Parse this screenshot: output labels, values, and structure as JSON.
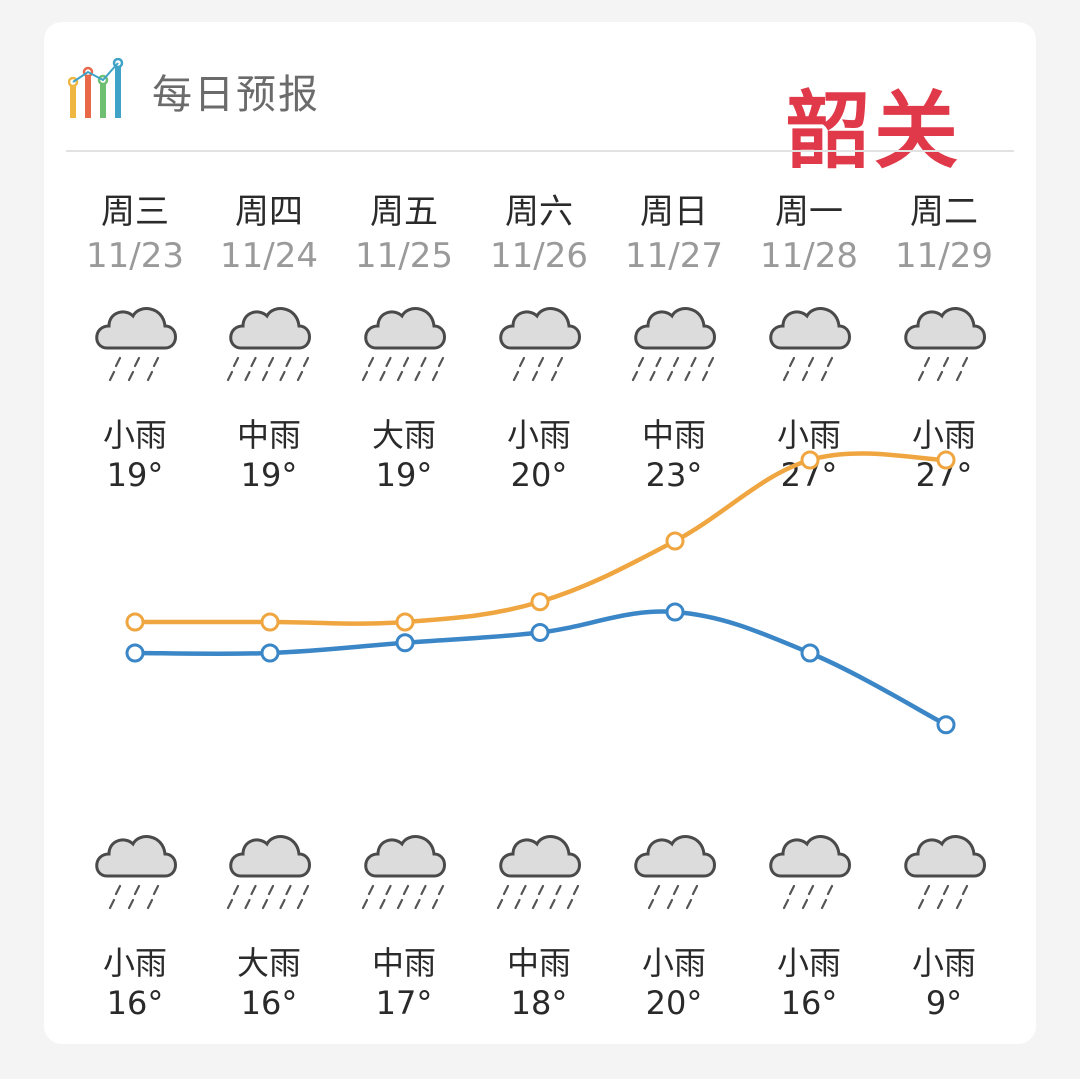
{
  "header": {
    "title": "每日预报",
    "city": "韶关",
    "icon": "bar-chart-icon"
  },
  "days": [
    {
      "weekday": "周三",
      "date": "11/23",
      "day_weather": "小雨",
      "day_temp": "19°",
      "night_weather": "小雨",
      "night_temp": "16°",
      "day_icon": "light-rain-icon",
      "night_icon": "light-rain-icon"
    },
    {
      "weekday": "周四",
      "date": "11/24",
      "day_weather": "中雨",
      "day_temp": "19°",
      "night_weather": "大雨",
      "night_temp": "16°",
      "day_icon": "moderate-rain-icon",
      "night_icon": "heavy-rain-icon"
    },
    {
      "weekday": "周五",
      "date": "11/25",
      "day_weather": "大雨",
      "day_temp": "19°",
      "night_weather": "中雨",
      "night_temp": "17°",
      "day_icon": "heavy-rain-icon",
      "night_icon": "moderate-rain-icon"
    },
    {
      "weekday": "周六",
      "date": "11/26",
      "day_weather": "小雨",
      "day_temp": "20°",
      "night_weather": "中雨",
      "night_temp": "18°",
      "day_icon": "light-rain-icon",
      "night_icon": "moderate-rain-icon"
    },
    {
      "weekday": "周日",
      "date": "11/27",
      "day_weather": "中雨",
      "day_temp": "23°",
      "night_weather": "小雨",
      "night_temp": "20°",
      "day_icon": "moderate-rain-icon",
      "night_icon": "light-rain-icon"
    },
    {
      "weekday": "周一",
      "date": "11/28",
      "day_weather": "小雨",
      "day_temp": "27°",
      "night_weather": "小雨",
      "night_temp": "16°",
      "day_icon": "light-rain-icon",
      "night_icon": "light-rain-icon"
    },
    {
      "weekday": "周二",
      "date": "11/29",
      "day_weather": "小雨",
      "day_temp": "27°",
      "night_weather": "小雨",
      "night_temp": "9°",
      "day_icon": "light-rain-icon",
      "night_icon": "light-rain-icon"
    }
  ],
  "colors": {
    "high_line": "#f0a640",
    "low_line": "#3a86c6",
    "city": "#e03a4a",
    "cloud_fill": "#dcdcdc",
    "cloud_stroke": "#4a4a4a"
  },
  "chart_data": {
    "type": "line",
    "x": [
      "11/23",
      "11/24",
      "11/25",
      "11/26",
      "11/27",
      "11/28",
      "11/29"
    ],
    "series": [
      {
        "values": [
          19,
          19,
          19,
          20,
          23,
          27,
          27
        ]
      },
      {
        "values": [
          16,
          16,
          17,
          18,
          20,
          16,
          9
        ]
      }
    ],
    "title": "",
    "xlabel": "",
    "ylabel": "",
    "grid": false,
    "legend": "none"
  }
}
